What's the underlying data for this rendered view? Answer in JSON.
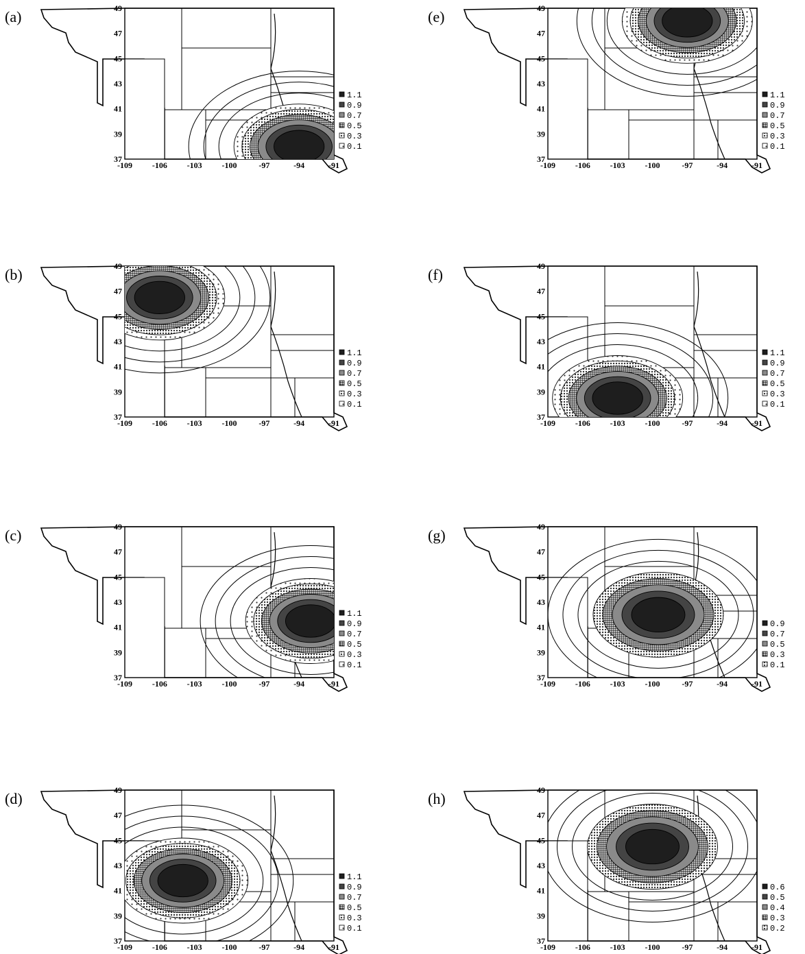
{
  "figure": {
    "latitude_ticks": [
      "49",
      "47",
      "45",
      "43",
      "41",
      "39",
      "37"
    ],
    "longitude_ticks": [
      "-109",
      "-106",
      "-103",
      "-100",
      "-97",
      "-94",
      "-91"
    ],
    "panels": [
      {
        "id": "a",
        "label": "(a)",
        "legend": [
          "1.1",
          "0.9",
          "0.7",
          "0.5",
          "0.3",
          "0.1"
        ],
        "maximum": {
          "lon": -94,
          "lat": 38,
          "level": 1.1
        }
      },
      {
        "id": "b",
        "label": "(b)",
        "legend": [
          "1.1",
          "0.9",
          "0.7",
          "0.5",
          "0.3",
          "0.1"
        ],
        "maximum": {
          "lon": -106,
          "lat": 46.5,
          "level": 1.1
        }
      },
      {
        "id": "c",
        "label": "(c)",
        "legend": [
          "1.1",
          "0.9",
          "0.7",
          "0.5",
          "0.3",
          "0.1"
        ],
        "maximum": {
          "lon": -93,
          "lat": 41.5,
          "level": 1.1
        }
      },
      {
        "id": "d",
        "label": "(d)",
        "legend": [
          "1.1",
          "0.9",
          "0.7",
          "0.5",
          "0.3",
          "0.1"
        ],
        "maximum": {
          "lon": -104,
          "lat": 41.8,
          "level": 1.1
        }
      },
      {
        "id": "e",
        "label": "(e)",
        "legend": [
          "1.1",
          "0.9",
          "0.7",
          "0.5",
          "0.3",
          "0.1"
        ],
        "maximum": {
          "lon": -97,
          "lat": 48,
          "level": 1.1
        }
      },
      {
        "id": "f",
        "label": "(f)",
        "legend": [
          "1.1",
          "0.9",
          "0.7",
          "0.5",
          "0.3",
          "0.1"
        ],
        "maximum": {
          "lon": -103,
          "lat": 38.5,
          "level": 1.1
        }
      },
      {
        "id": "g",
        "label": "(g)",
        "legend": [
          "0.9",
          "0.7",
          "0.5",
          "0.3",
          "0.1"
        ],
        "maximum": {
          "lon": -99.5,
          "lat": 42,
          "level": 0.9
        }
      },
      {
        "id": "h",
        "label": "(h)",
        "legend": [
          "0.6",
          "0.5",
          "0.4",
          "0.3",
          "0.2"
        ],
        "maximum": {
          "lon": -100,
          "lat": 44.5,
          "level": 0.6
        }
      }
    ]
  }
}
